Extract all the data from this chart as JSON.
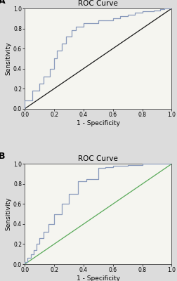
{
  "title": "ROC Curve",
  "xlabel": "1 - Specificity",
  "ylabel": "Sensitivity",
  "xlim": [
    0.0,
    1.0
  ],
  "ylim": [
    0.0,
    1.0
  ],
  "xticks": [
    0.0,
    0.2,
    0.4,
    0.6,
    0.8,
    1.0
  ],
  "yticks": [
    0.0,
    0.2,
    0.4,
    0.6,
    0.8,
    1.0
  ],
  "panel_A_label": "A",
  "panel_B_label": "B",
  "roc_A_x": [
    0.0,
    0.0,
    0.05,
    0.05,
    0.1,
    0.1,
    0.13,
    0.13,
    0.17,
    0.17,
    0.2,
    0.2,
    0.22,
    0.22,
    0.25,
    0.25,
    0.28,
    0.28,
    0.32,
    0.32,
    0.35,
    0.35,
    0.4,
    0.4,
    0.5,
    0.5,
    0.6,
    0.6,
    0.65,
    0.65,
    0.7,
    0.7,
    0.75,
    0.75,
    0.8,
    0.8,
    0.88,
    0.88,
    0.92,
    0.92,
    0.95,
    0.95,
    1.0
  ],
  "roc_A_y": [
    0.0,
    0.08,
    0.08,
    0.18,
    0.18,
    0.25,
    0.25,
    0.32,
    0.32,
    0.4,
    0.4,
    0.5,
    0.5,
    0.58,
    0.58,
    0.65,
    0.65,
    0.72,
    0.72,
    0.78,
    0.78,
    0.82,
    0.82,
    0.85,
    0.85,
    0.88,
    0.88,
    0.9,
    0.9,
    0.92,
    0.92,
    0.94,
    0.94,
    0.96,
    0.96,
    0.97,
    0.97,
    0.98,
    0.98,
    0.99,
    0.99,
    1.0,
    1.0
  ],
  "roc_B_x": [
    0.0,
    0.0,
    0.02,
    0.02,
    0.04,
    0.04,
    0.06,
    0.06,
    0.08,
    0.08,
    0.1,
    0.1,
    0.13,
    0.13,
    0.16,
    0.16,
    0.2,
    0.2,
    0.25,
    0.25,
    0.3,
    0.3,
    0.36,
    0.36,
    0.42,
    0.42,
    0.5,
    0.5,
    0.55,
    0.55,
    0.6,
    0.6,
    0.7,
    0.7,
    0.8,
    0.8,
    1.0
  ],
  "roc_B_y": [
    0.0,
    0.02,
    0.02,
    0.06,
    0.06,
    0.1,
    0.1,
    0.14,
    0.14,
    0.2,
    0.2,
    0.26,
    0.26,
    0.32,
    0.32,
    0.4,
    0.4,
    0.5,
    0.5,
    0.6,
    0.6,
    0.7,
    0.7,
    0.83,
    0.83,
    0.85,
    0.85,
    0.96,
    0.96,
    0.97,
    0.97,
    0.98,
    0.98,
    0.99,
    0.99,
    1.0,
    1.0
  ],
  "diag_line_color_A": "#1a1a1a",
  "diag_line_color_B": "#5aaa5a",
  "roc_line_color": "#8899bb",
  "bg_color": "#dcdcdc",
  "plot_bg_color": "#f5f5f0",
  "tick_fontsize": 5.5,
  "label_fontsize": 6.5,
  "title_fontsize": 7.5
}
